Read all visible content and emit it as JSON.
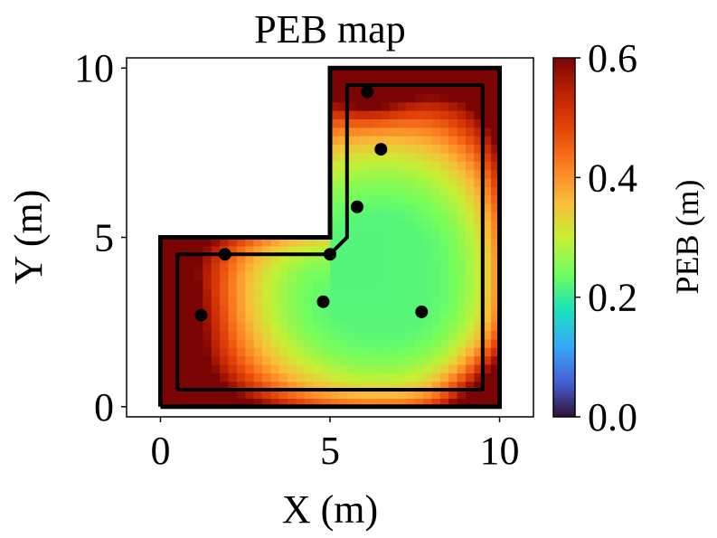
{
  "chart_data": {
    "type": "heatmap",
    "title": "PEB map",
    "xlabel": "X (m)",
    "ylabel": "Y (m)",
    "xlim": [
      -1,
      11
    ],
    "ylim": [
      -0.3,
      10.3
    ],
    "x_ticks": [
      {
        "value": 0,
        "label": "0"
      },
      {
        "value": 5,
        "label": "5"
      },
      {
        "value": 10,
        "label": "10"
      }
    ],
    "y_ticks": [
      {
        "value": 0,
        "label": "0"
      },
      {
        "value": 5,
        "label": "5"
      },
      {
        "value": 10,
        "label": "10"
      }
    ],
    "colorbar": {
      "label": "PEB (m)",
      "range": [
        0,
        0.6
      ],
      "colormap": "turbo",
      "ticks": [
        {
          "value": 0.0,
          "label": "0.0"
        },
        {
          "value": 0.2,
          "label": "0.2"
        },
        {
          "value": 0.4,
          "label": "0.4"
        },
        {
          "value": 0.6,
          "label": "0.6"
        }
      ]
    },
    "outer_boundary": [
      [
        0,
        0
      ],
      [
        10,
        0
      ],
      [
        10,
        10
      ],
      [
        5,
        10
      ],
      [
        5,
        5
      ],
      [
        0,
        5
      ],
      [
        0,
        0
      ]
    ],
    "inner_boundary": [
      [
        0.5,
        0.5
      ],
      [
        9.5,
        0.5
      ],
      [
        9.5,
        9.5
      ],
      [
        5.5,
        9.5
      ],
      [
        5.5,
        5
      ],
      [
        5.0,
        4.5
      ],
      [
        0.5,
        4.5
      ],
      [
        0.5,
        0.5
      ]
    ],
    "anchors": [
      {
        "x": 6.1,
        "y": 9.3
      },
      {
        "x": 6.5,
        "y": 7.6
      },
      {
        "x": 5.8,
        "y": 5.9
      },
      {
        "x": 5.0,
        "y": 4.5
      },
      {
        "x": 1.9,
        "y": 4.5
      },
      {
        "x": 4.8,
        "y": 3.1
      },
      {
        "x": 1.2,
        "y": 2.7
      },
      {
        "x": 7.7,
        "y": 2.8
      }
    ],
    "grid": false
  }
}
